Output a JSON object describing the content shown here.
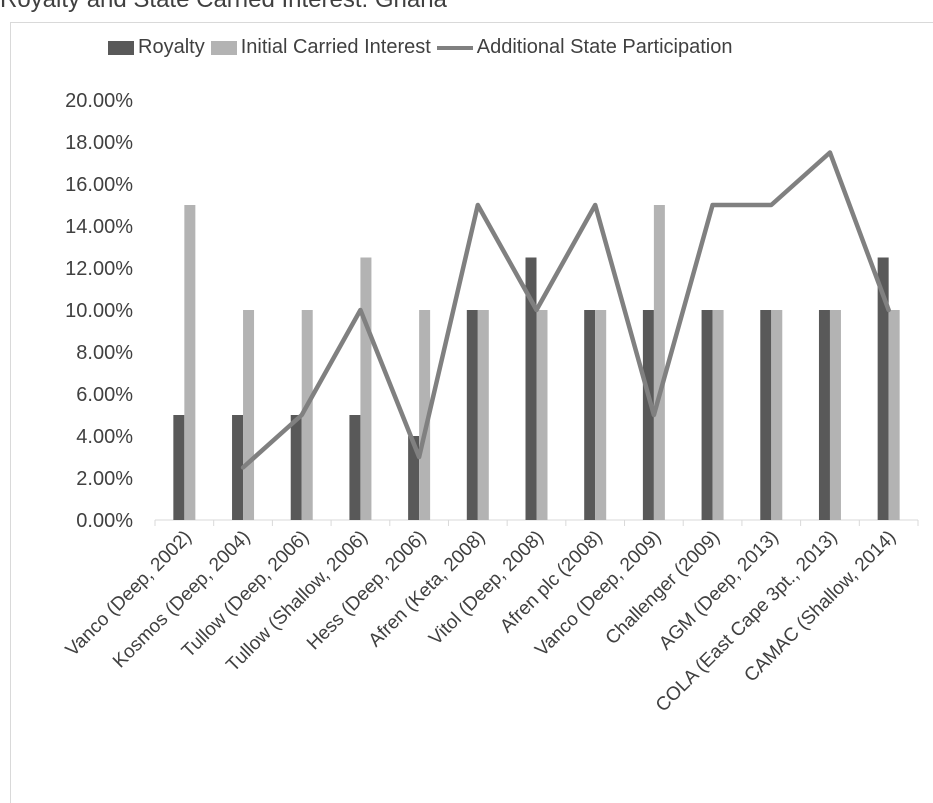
{
  "page": {
    "title_fragment": "Royalty and State Carried Interest: Ghana"
  },
  "chart_data": {
    "type": "bar",
    "title": "",
    "xlabel": "",
    "ylabel": "",
    "ylim": [
      0,
      0.2
    ],
    "y_ticks": [
      "0.00%",
      "2.00%",
      "4.00%",
      "6.00%",
      "8.00%",
      "10.00%",
      "12.00%",
      "14.00%",
      "16.00%",
      "18.00%",
      "20.00%"
    ],
    "categories": [
      "Vanco (Deep, 2002)",
      "Kosmos (Deep, 2004)",
      "Tullow (Deep, 2006)",
      "Tullow (Shallow, 2006)",
      "Hess (Deep, 2006)",
      "Afren (Keta, 2008)",
      "Vitol (Deep, 2008)",
      "Afren plc (2008)",
      "Vanco (Deep, 2009)",
      "Challenger (2009)",
      "AGM (Deep, 2013)",
      "COLA (East Cape 3pt., 2013)",
      "CAMAC (Shallow, 2014)"
    ],
    "series": [
      {
        "name": "Royalty",
        "kind": "bar",
        "color": "#595959",
        "values": [
          0.05,
          0.05,
          0.05,
          0.05,
          0.04,
          0.1,
          0.125,
          0.1,
          0.1,
          0.1,
          0.1,
          0.1,
          0.125
        ]
      },
      {
        "name": "Initial Carried Interest",
        "kind": "bar",
        "color": "#b3b3b3",
        "values": [
          0.15,
          0.1,
          0.1,
          0.125,
          0.1,
          0.1,
          0.1,
          0.1,
          0.15,
          0.1,
          0.1,
          0.1,
          0.1
        ]
      },
      {
        "name": "Additional State Participation",
        "kind": "line",
        "color": "#808080",
        "values": [
          null,
          0.025,
          0.05,
          0.1,
          0.03,
          0.15,
          0.1,
          0.15,
          0.05,
          0.15,
          0.15,
          0.175,
          0.1
        ]
      }
    ],
    "legend_position": "top",
    "grid": false
  }
}
